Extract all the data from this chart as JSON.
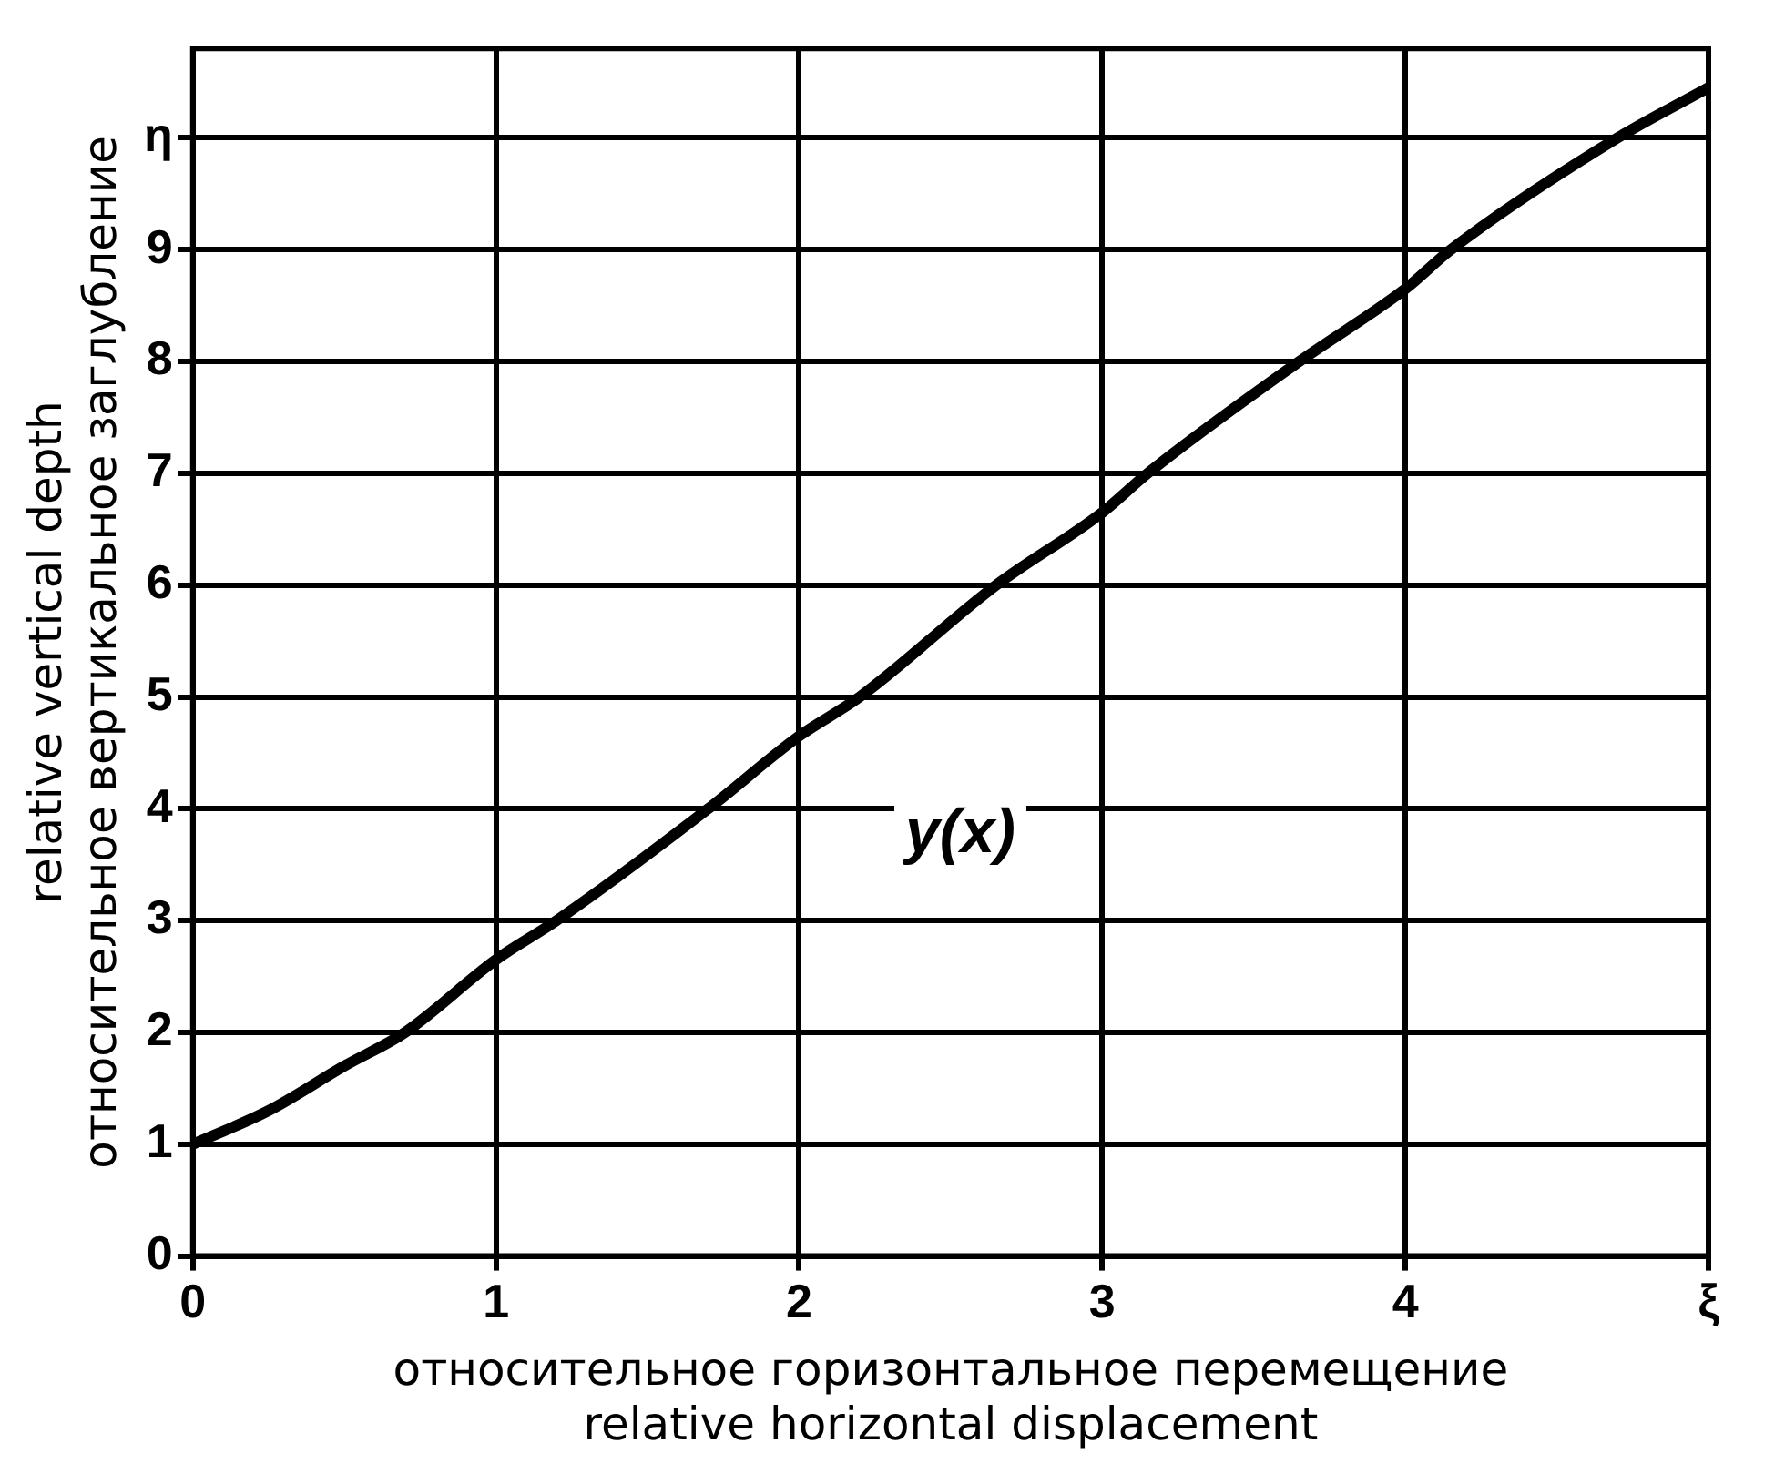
{
  "chart_data": {
    "type": "line",
    "xlabel": "относительное горизонтальное перемещение\nrelative horizontal displacement",
    "ylabel": "relative vertical depth\nотносительное вертикальное заглубление",
    "xlim": [
      0,
      5
    ],
    "xticks": [
      0,
      1,
      2,
      3,
      4,
      {
        "value": 5,
        "label": "ξ"
      }
    ],
    "ylim": [
      0,
      10.8
    ],
    "yticks": [
      0,
      1,
      2,
      3,
      4,
      5,
      6,
      7,
      8,
      9,
      {
        "value": 10,
        "label": "η"
      }
    ],
    "grid": true,
    "legend": false,
    "marker": "none",
    "line_style": "solid",
    "series": [
      {
        "name": "y(x)",
        "color": "#000000",
        "x": [
          0,
          0.25,
          0.5,
          0.7,
          1,
          1.2,
          1.7,
          2,
          2.2,
          2.65,
          3,
          3.15,
          3.65,
          4,
          4.15,
          4.7,
          5
        ],
        "values": [
          1,
          1.3,
          1.7,
          2,
          2.65,
          3,
          4,
          4.65,
          5,
          6,
          6.65,
          7,
          8,
          8.65,
          9,
          10,
          10.45
        ]
      }
    ]
  }
}
